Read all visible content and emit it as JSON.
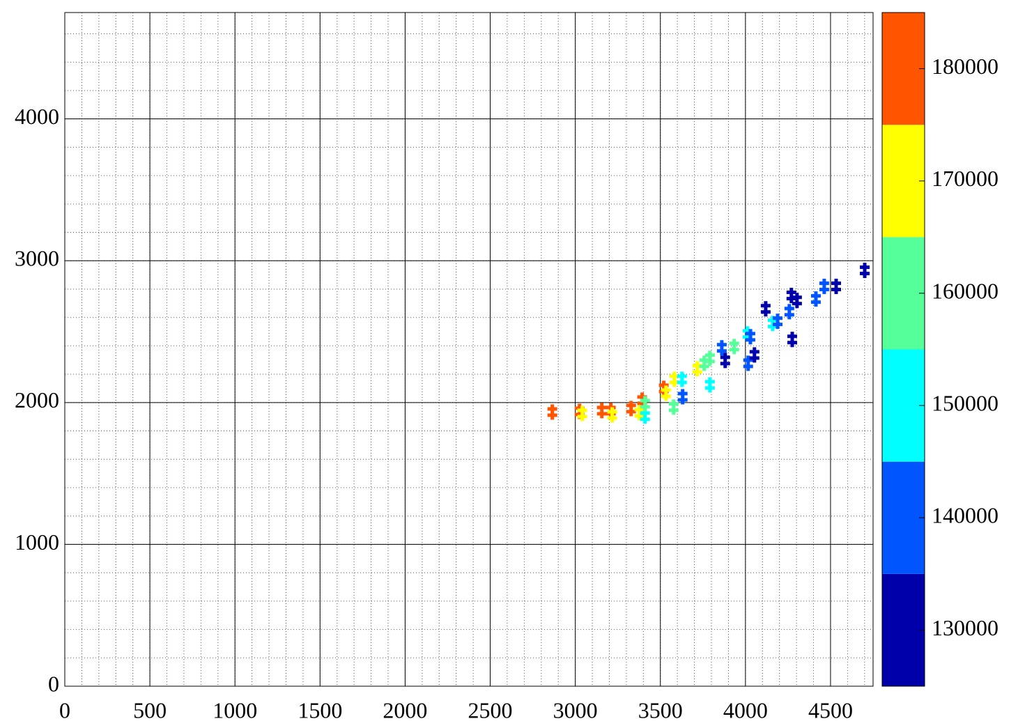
{
  "chart_data": {
    "type": "scatter",
    "x": [
      2865,
      3025,
      3041,
      3156,
      3209,
      3217,
      3328,
      3377,
      3393,
      3410,
      3410,
      3520,
      3533,
      3578,
      3582,
      3631,
      3627,
      3717,
      3758,
      3791,
      3791,
      3861,
      3881,
      3934,
      4012,
      4029,
      4016,
      4053,
      4119,
      4160,
      4189,
      4258,
      4270,
      4303,
      4275,
      4414,
      4463,
      4533,
      4701
    ],
    "y": [
      1933,
      1938,
      1923,
      1943,
      1943,
      1913,
      1958,
      1928,
      2017,
      1904,
      1992,
      2100,
      2066,
      1968,
      2164,
      2041,
      2164,
      2238,
      2277,
      2312,
      2125,
      2386,
      2297,
      2395,
      2484,
      2464,
      2277,
      2336,
      2661,
      2558,
      2573,
      2641,
      2755,
      2720,
      2445,
      2730,
      2819,
      2819,
      2932
    ],
    "z": [
      182000,
      180000,
      172000,
      182000,
      182000,
      172000,
      181000,
      172000,
      182000,
      150000,
      162000,
      181000,
      174000,
      160000,
      172000,
      140000,
      150000,
      172000,
      162000,
      160000,
      150000,
      140000,
      130000,
      162000,
      152000,
      142000,
      140000,
      130000,
      130000,
      152000,
      142000,
      140000,
      130000,
      130000,
      130000,
      140000,
      138000,
      132000,
      130000
    ],
    "xlim": [
      0,
      4750
    ],
    "xticks": [
      0,
      500,
      1000,
      1500,
      2000,
      2500,
      3000,
      3500,
      4000,
      4500
    ],
    "ylim": [
      0,
      4750
    ],
    "yticks": [
      0,
      1000,
      2000,
      3000,
      4000
    ],
    "zlim": [
      125000,
      185000
    ],
    "zticks": [
      130000,
      140000,
      150000,
      160000,
      170000,
      180000
    ],
    "palette": [
      "#0000aa",
      "#0055ff",
      "#00ffff",
      "#55ff99",
      "#ffff00",
      "#ff5500"
    ],
    "grid": true
  }
}
